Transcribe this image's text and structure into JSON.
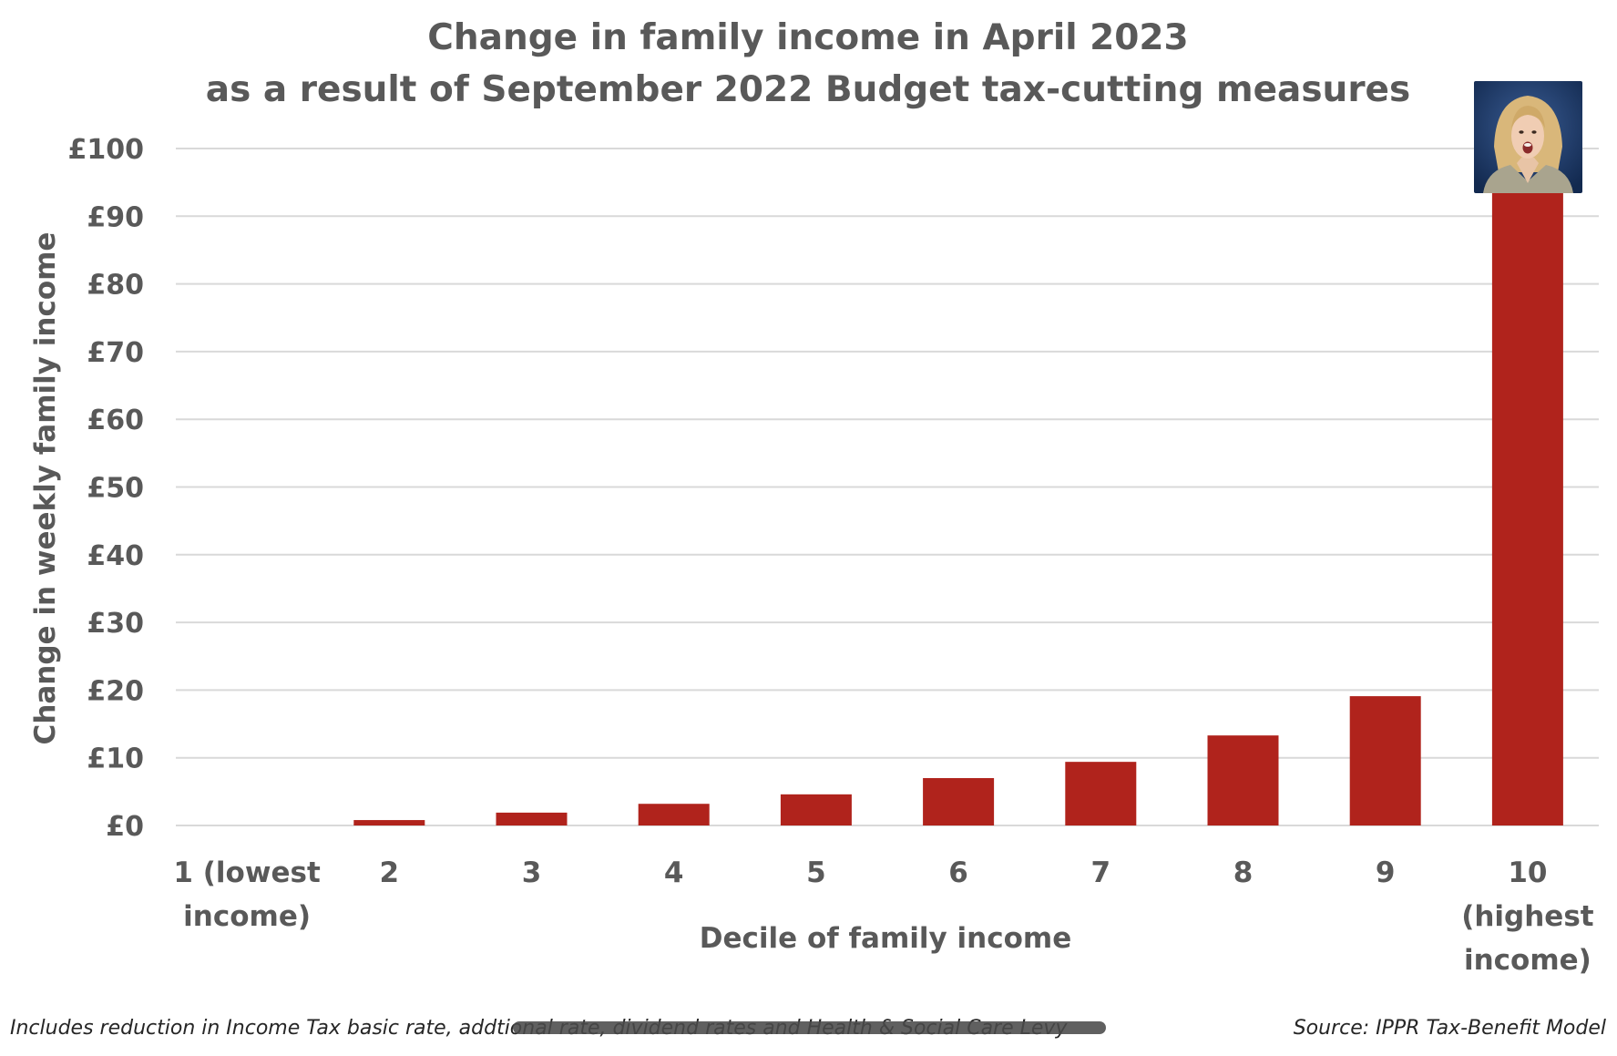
{
  "chart_data": {
    "type": "bar",
    "title_lines": [
      "Change in family income in April 2023",
      "as a result of September 2022 Budget tax-cutting measures"
    ],
    "xlabel": "Decile of family income",
    "ylabel": "Change in weekly family income",
    "categories": [
      [
        "1 (lowest",
        "income)"
      ],
      [
        "2"
      ],
      [
        "3"
      ],
      [
        "4"
      ],
      [
        "5"
      ],
      [
        "6"
      ],
      [
        "7"
      ],
      [
        "8"
      ],
      [
        "9"
      ],
      [
        "10",
        "(highest",
        "income)"
      ]
    ],
    "values": [
      0,
      0.8,
      1.9,
      3.2,
      4.6,
      7.0,
      9.4,
      13.3,
      19.1,
      94.0
    ],
    "ylim": [
      0,
      100
    ],
    "yticks": [
      0,
      10,
      20,
      30,
      40,
      50,
      60,
      70,
      80,
      90,
      100
    ],
    "ytick_labels": [
      "£0",
      "£10",
      "£20",
      "£30",
      "£40",
      "£50",
      "£60",
      "£70",
      "£80",
      "£90",
      "£100"
    ],
    "grid": true,
    "bar_color": "#b0231c"
  },
  "footer": {
    "note": "Includes reduction in Income Tax basic rate, addtional rate, dividend rates and Health & Social Care Levy",
    "source": "Source: IPPR Tax-Benefit Model"
  },
  "colors": {
    "text": "#595959",
    "gridline": "#d9d9d9",
    "photo_background": "#1a3566"
  }
}
